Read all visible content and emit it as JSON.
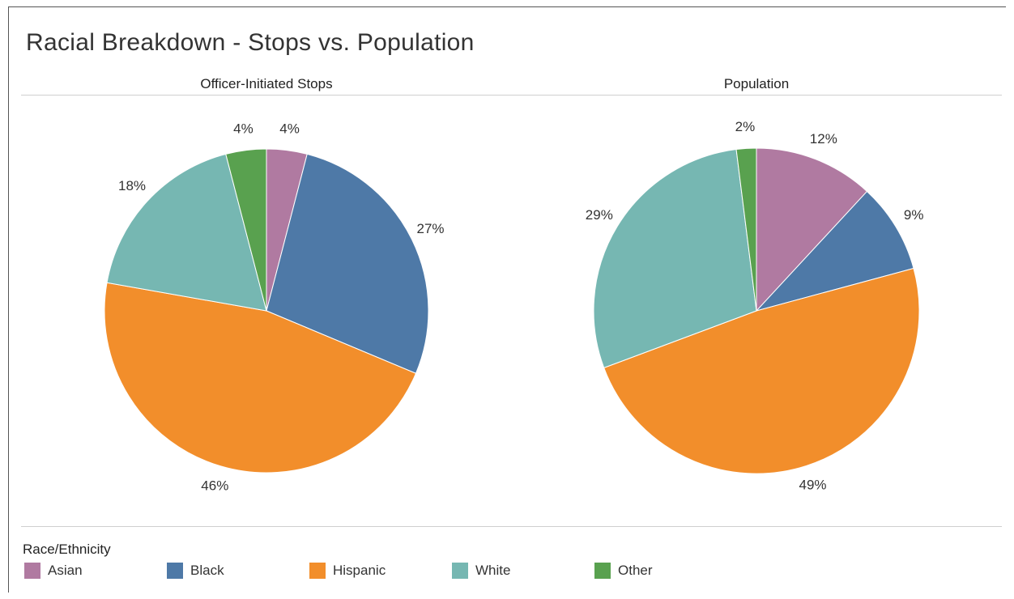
{
  "title": "Racial Breakdown - Stops vs. Population",
  "legend": {
    "title": "Race/Ethnicity",
    "items": [
      {
        "label": "Asian",
        "color": "#b07aa1"
      },
      {
        "label": "Black",
        "color": "#4e79a7"
      },
      {
        "label": "Hispanic",
        "color": "#f28e2b"
      },
      {
        "label": "White",
        "color": "#76b7b2"
      },
      {
        "label": "Other",
        "color": "#59a14f"
      }
    ]
  },
  "chart_data": [
    {
      "type": "pie",
      "title": "Officer-Initiated Stops",
      "categories": [
        "Asian",
        "Black",
        "Hispanic",
        "White",
        "Other"
      ],
      "values": [
        4,
        27,
        46,
        18,
        4
      ],
      "labels": [
        "4%",
        "27%",
        "46%",
        "18%",
        "4%"
      ],
      "start": "12 o'clock, clockwise"
    },
    {
      "type": "pie",
      "title": "Population",
      "categories": [
        "Asian",
        "Black",
        "Hispanic",
        "White",
        "Other"
      ],
      "values": [
        12,
        9,
        49,
        29,
        2
      ],
      "labels": [
        "12%",
        "9%",
        "49%",
        "29%",
        "2%"
      ],
      "start": "12 o'clock, clockwise"
    }
  ]
}
